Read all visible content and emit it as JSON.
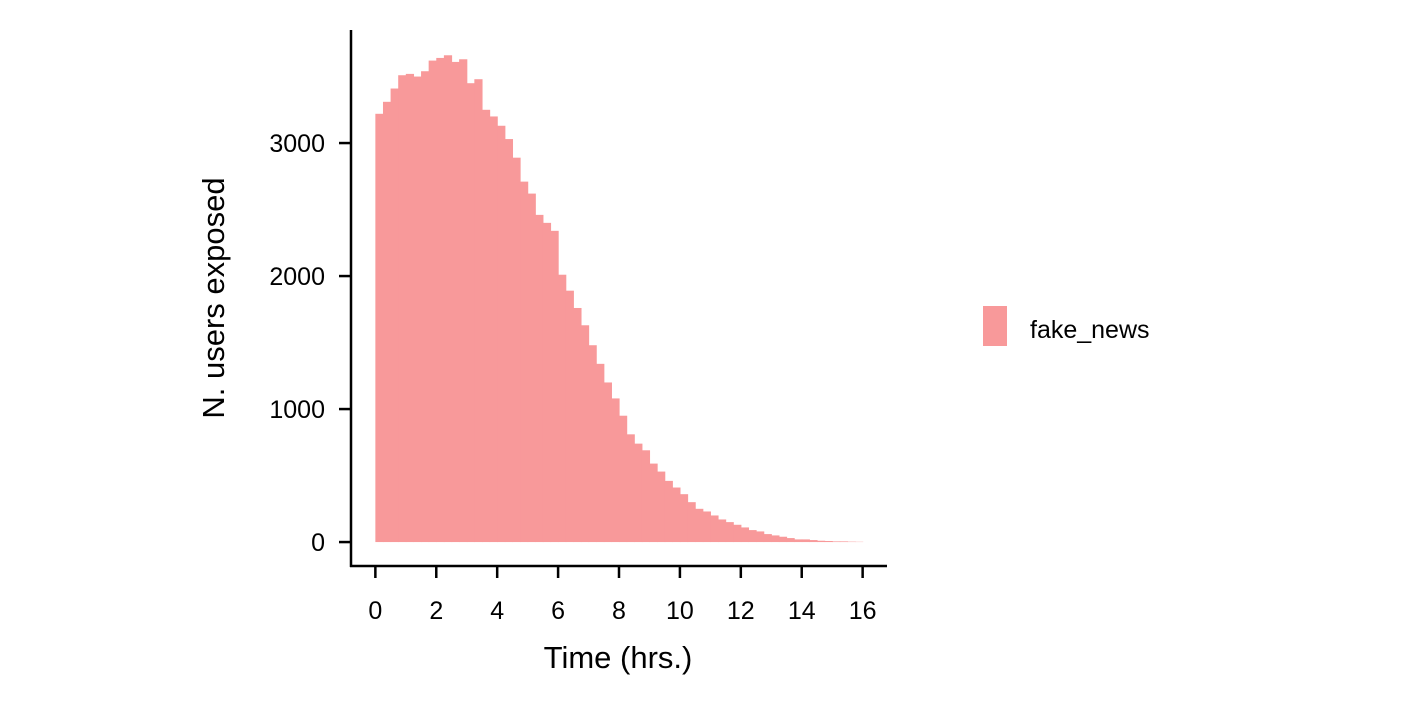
{
  "chart_data": {
    "type": "histogram",
    "xlabel": "Time (hrs.)",
    "ylabel": "N. users exposed",
    "xlim": [
      -0.8,
      16.8
    ],
    "ylim": [
      -180,
      3850
    ],
    "x_ticks": [
      0,
      2,
      4,
      6,
      8,
      10,
      12,
      14,
      16
    ],
    "y_ticks": [
      0,
      1000,
      2000,
      3000
    ],
    "bin_width": 0.25,
    "grid": false,
    "legend_position": "right",
    "series": [
      {
        "name": "fake_news",
        "color": "#f8999a",
        "bin_starts": [
          0,
          0.25,
          0.5,
          0.75,
          1,
          1.25,
          1.5,
          1.75,
          2,
          2.25,
          2.5,
          2.75,
          3,
          3.25,
          3.5,
          3.75,
          4,
          4.25,
          4.5,
          4.75,
          5,
          5.25,
          5.5,
          5.75,
          6,
          6.25,
          6.5,
          6.75,
          7,
          7.25,
          7.5,
          7.75,
          8,
          8.25,
          8.5,
          8.75,
          9,
          9.25,
          9.5,
          9.75,
          10,
          10.25,
          10.5,
          10.75,
          11,
          11.25,
          11.5,
          11.75,
          12,
          12.25,
          12.5,
          12.75,
          13,
          13.25,
          13.5,
          13.75,
          14,
          14.25,
          14.5,
          14.75,
          15,
          15.25,
          15.5,
          15.75
        ],
        "counts": [
          3220,
          3310,
          3410,
          3510,
          3520,
          3500,
          3540,
          3620,
          3640,
          3660,
          3610,
          3630,
          3450,
          3480,
          3250,
          3200,
          3130,
          3030,
          2890,
          2710,
          2620,
          2460,
          2400,
          2340,
          2010,
          1890,
          1760,
          1630,
          1480,
          1340,
          1200,
          1080,
          950,
          810,
          740,
          690,
          590,
          530,
          460,
          410,
          360,
          300,
          250,
          230,
          200,
          170,
          150,
          130,
          110,
          90,
          80,
          60,
          50,
          40,
          30,
          20,
          20,
          15,
          10,
          8,
          5,
          5,
          3,
          2
        ]
      }
    ]
  }
}
